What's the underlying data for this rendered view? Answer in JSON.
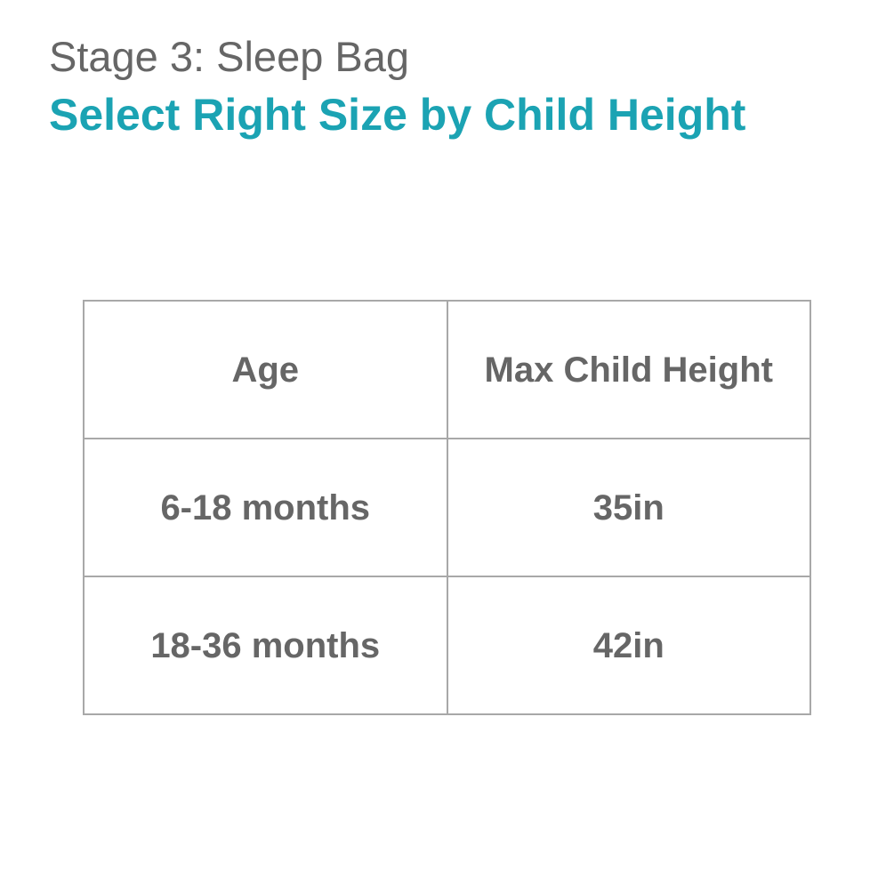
{
  "header": {
    "subtitle": "Stage 3: Sleep Bag",
    "title": "Select Right Size by Child Height",
    "title_color": "#1ba3b3"
  },
  "table": {
    "headers": [
      "Age",
      "Max Child Height"
    ],
    "rows": [
      [
        "6-18 months",
        "35in"
      ],
      [
        "18-36 months",
        "42in"
      ]
    ]
  }
}
